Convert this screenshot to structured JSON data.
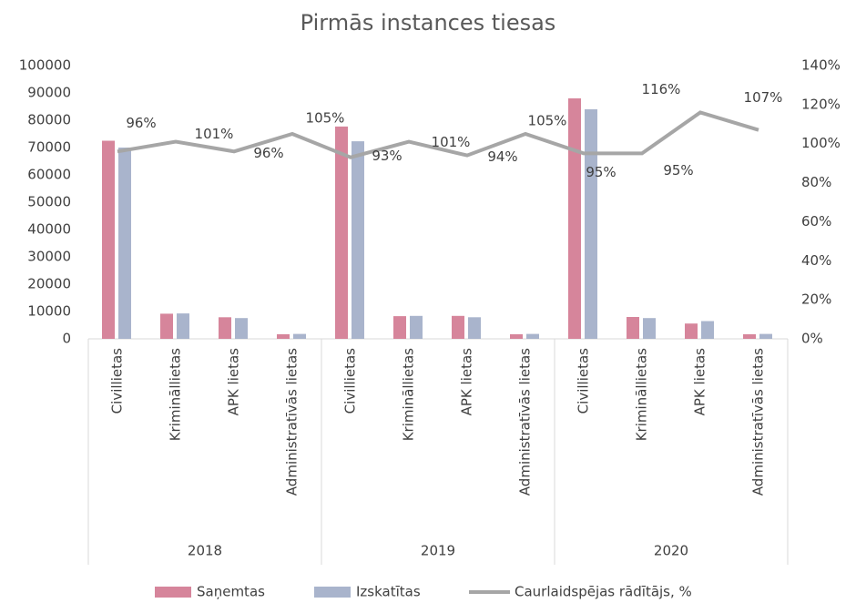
{
  "chart_data": {
    "type": "bar-line",
    "title": "Pirmās instances tiesas",
    "groups": [
      "2018",
      "2019",
      "2020"
    ],
    "categories": [
      "Civillietas",
      "Krimināllietas",
      "APK lietas",
      "Administratīvās lietas",
      "Civillietas",
      "Krimināllietas",
      "APK lietas",
      "Administratīvās lietas",
      "Civillietas",
      "Krimināllietas",
      "APK lietas",
      "Administratīvās lietas"
    ],
    "series": [
      {
        "name": "Saņemtas",
        "color": "#d6859b",
        "values": [
          72500,
          9200,
          7900,
          1700,
          77700,
          8300,
          8400,
          1700,
          88000,
          8000,
          5600,
          1700
        ]
      },
      {
        "name": "Izskatītas",
        "color": "#a9b4cc",
        "values": [
          70000,
          9300,
          7600,
          1800,
          72300,
          8400,
          7900,
          1800,
          84000,
          7600,
          6500,
          1800
        ]
      },
      {
        "name": "Caurlaidspējas rādītājs, %",
        "color": "#a6a6a6",
        "axis": "y2",
        "values": [
          96,
          101,
          96,
          105,
          93,
          101,
          94,
          105,
          95,
          95,
          116,
          107
        ],
        "value_labels": [
          "96%",
          "101%",
          "96%",
          "105%",
          "93%",
          "101%",
          "94%",
          "105%",
          "95%",
          "95%",
          "116%",
          "107%"
        ]
      }
    ],
    "ylim": [
      0,
      100000
    ],
    "yticks": [
      0,
      10000,
      20000,
      30000,
      40000,
      50000,
      60000,
      70000,
      80000,
      90000,
      100000
    ],
    "y2lim": [
      0,
      140
    ],
    "y2ticks": [
      {
        "value": 0,
        "label": "0%"
      },
      {
        "value": 20,
        "label": "20%"
      },
      {
        "value": 40,
        "label": "40%"
      },
      {
        "value": 60,
        "label": "60%"
      },
      {
        "value": 80,
        "label": "80%"
      },
      {
        "value": 100,
        "label": "100%"
      },
      {
        "value": 120,
        "label": "120%"
      },
      {
        "value": 140,
        "label": "140%"
      }
    ],
    "legend": "bottom"
  }
}
